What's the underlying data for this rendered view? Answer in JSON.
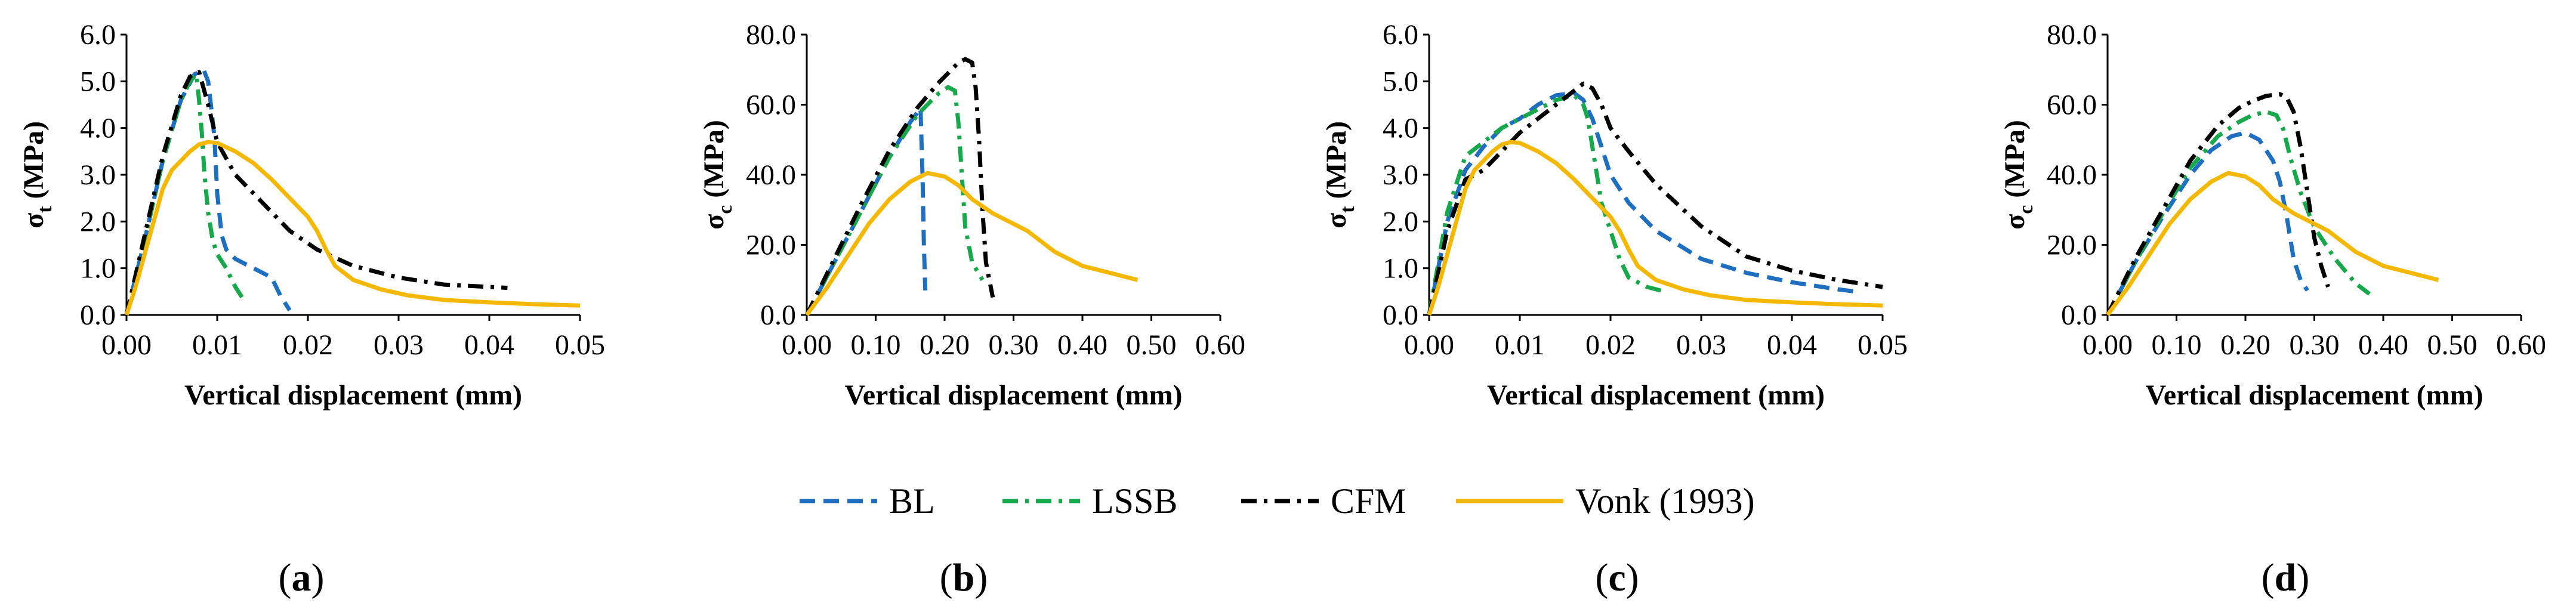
{
  "colors": {
    "BL": "#1F6FC0",
    "LSSB": "#16A84A",
    "CFM": "#000000",
    "Vonk": "#F5B800"
  },
  "legend": [
    {
      "key": "BL",
      "label": "BL"
    },
    {
      "key": "LSSB",
      "label": "LSSB"
    },
    {
      "key": "CFM",
      "label": "CFM"
    },
    {
      "key": "Vonk",
      "label": "Vonk (1993)"
    }
  ],
  "chart_data": [
    {
      "panel": "a",
      "type": "line",
      "xlabel": "Vertical displacement (mm)",
      "ylabel_main": "σ",
      "ylabel_sub": "t",
      "ylabel_unit": " (MPa)",
      "xlim": [
        0,
        0.05
      ],
      "ylim": [
        0,
        6
      ],
      "xticks": [
        "0.00",
        "0.01",
        "0.02",
        "0.03",
        "0.04",
        "0.05"
      ],
      "xtick_values": [
        0,
        0.01,
        0.02,
        0.03,
        0.04,
        0.05
      ],
      "yticks": [
        "0.0",
        "1.0",
        "2.0",
        "3.0",
        "4.0",
        "5.0",
        "6.0"
      ],
      "ytick_values": [
        0,
        1,
        2,
        3,
        4,
        5,
        6
      ],
      "series": [
        {
          "key": "BL",
          "x": [
            0,
            0.002,
            0.004,
            0.006,
            0.0075,
            0.0085,
            0.009,
            0.0093,
            0.0097,
            0.01,
            0.0105,
            0.011,
            0.012,
            0.014,
            0.016,
            0.017,
            0.018
          ],
          "y": [
            0,
            1.6,
            3.3,
            4.6,
            5.15,
            5.25,
            5.0,
            4.5,
            3.8,
            2.6,
            1.7,
            1.4,
            1.2,
            1.0,
            0.8,
            0.4,
            0.1
          ]
        },
        {
          "key": "LSSB",
          "x": [
            0,
            0.002,
            0.004,
            0.006,
            0.007,
            0.0077,
            0.008,
            0.0083,
            0.0086,
            0.009,
            0.0095,
            0.01,
            0.011,
            0.012,
            0.013
          ],
          "y": [
            0,
            1.6,
            3.3,
            4.6,
            5.0,
            5.15,
            4.6,
            3.9,
            3.0,
            2.2,
            1.6,
            1.3,
            1.0,
            0.6,
            0.3
          ]
        },
        {
          "key": "CFM",
          "x": [
            0,
            0.002,
            0.004,
            0.006,
            0.007,
            0.008,
            0.009,
            0.01,
            0.012,
            0.015,
            0.018,
            0.021,
            0.025,
            0.03,
            0.035,
            0.04,
            0.042
          ],
          "y": [
            0,
            1.7,
            3.4,
            4.7,
            5.1,
            5.2,
            4.5,
            3.7,
            3.0,
            2.4,
            1.8,
            1.4,
            1.05,
            0.8,
            0.65,
            0.6,
            0.58
          ]
        },
        {
          "key": "Vonk",
          "x": [
            0,
            0.001,
            0.002,
            0.003,
            0.004,
            0.005,
            0.006,
            0.007,
            0.008,
            0.009,
            0.01,
            0.012,
            0.014,
            0.016,
            0.018,
            0.02,
            0.021,
            0.022,
            0.023,
            0.025,
            0.028,
            0.031,
            0.035,
            0.04,
            0.045,
            0.05
          ],
          "y": [
            0,
            0.6,
            1.3,
            2.0,
            2.7,
            3.1,
            3.3,
            3.5,
            3.65,
            3.7,
            3.68,
            3.5,
            3.25,
            2.9,
            2.5,
            2.1,
            1.8,
            1.4,
            1.05,
            0.75,
            0.55,
            0.42,
            0.32,
            0.27,
            0.23,
            0.2
          ]
        }
      ]
    },
    {
      "panel": "b",
      "type": "line",
      "xlabel": "Vertical displacement (mm)",
      "ylabel_main": "σ",
      "ylabel_sub": "c",
      "ylabel_unit": " (MPa)",
      "xlim": [
        0,
        0.6
      ],
      "ylim": [
        0,
        80
      ],
      "xticks": [
        "0.00",
        "0.10",
        "0.20",
        "0.30",
        "0.40",
        "0.50",
        "0.60"
      ],
      "xtick_values": [
        0,
        0.1,
        0.2,
        0.3,
        0.4,
        0.5,
        0.6
      ],
      "yticks": [
        "0.0",
        "20.0",
        "40.0",
        "60.0",
        "80.0"
      ],
      "ytick_values": [
        0,
        20,
        40,
        60,
        80
      ],
      "series": [
        {
          "key": "BL",
          "x": [
            0,
            0.04,
            0.08,
            0.12,
            0.15,
            0.165,
            0.168,
            0.17,
            0.172
          ],
          "y": [
            0,
            15,
            30,
            45,
            55,
            59,
            40,
            20,
            7
          ]
        },
        {
          "key": "LSSB",
          "x": [
            0,
            0.04,
            0.08,
            0.12,
            0.16,
            0.19,
            0.205,
            0.215,
            0.22,
            0.225,
            0.23,
            0.24,
            0.255
          ],
          "y": [
            0,
            15,
            30,
            45,
            57,
            63,
            65,
            64,
            55,
            40,
            25,
            15,
            10
          ]
        },
        {
          "key": "CFM",
          "x": [
            0,
            0.04,
            0.08,
            0.12,
            0.16,
            0.19,
            0.21,
            0.22,
            0.23,
            0.24,
            0.245,
            0.25,
            0.255,
            0.26,
            0.27
          ],
          "y": [
            0,
            16,
            32,
            47,
            59,
            66,
            70,
            72,
            73,
            72,
            65,
            50,
            30,
            15,
            5
          ]
        },
        {
          "key": "Vonk",
          "x": [
            0,
            0.03,
            0.06,
            0.09,
            0.12,
            0.15,
            0.175,
            0.2,
            0.22,
            0.24,
            0.27,
            0.3,
            0.32,
            0.34,
            0.36,
            0.38,
            0.4,
            0.44,
            0.48
          ],
          "y": [
            0,
            8,
            17,
            26,
            33,
            38,
            40.5,
            39.5,
            37,
            33,
            29,
            26,
            24,
            21,
            18,
            16,
            14,
            12,
            10
          ]
        }
      ]
    },
    {
      "panel": "c",
      "type": "line",
      "xlabel": "Vertical displacement (mm)",
      "ylabel_main": "σ",
      "ylabel_sub": "t",
      "ylabel_unit": " (MPa)",
      "xlim": [
        0,
        0.05
      ],
      "ylim": [
        0,
        6
      ],
      "xticks": [
        "0.00",
        "0.01",
        "0.02",
        "0.03",
        "0.04",
        "0.05"
      ],
      "xtick_values": [
        0,
        0.01,
        0.02,
        0.03,
        0.04,
        0.05
      ],
      "yticks": [
        "0.0",
        "1.0",
        "2.0",
        "3.0",
        "4.0",
        "5.0",
        "6.0"
      ],
      "ytick_values": [
        0,
        1,
        2,
        3,
        4,
        5,
        6
      ],
      "series": [
        {
          "key": "BL",
          "x": [
            0,
            0.002,
            0.004,
            0.006,
            0.008,
            0.01,
            0.012,
            0.014,
            0.016,
            0.017,
            0.018,
            0.019,
            0.02,
            0.022,
            0.025,
            0.03,
            0.035,
            0.04,
            0.045,
            0.047
          ],
          "y": [
            0,
            2.0,
            3.1,
            3.6,
            4.0,
            4.2,
            4.5,
            4.7,
            4.75,
            4.6,
            4.2,
            3.6,
            3.0,
            2.4,
            1.8,
            1.2,
            0.9,
            0.7,
            0.55,
            0.5
          ]
        },
        {
          "key": "LSSB",
          "x": [
            0,
            0.002,
            0.004,
            0.006,
            0.008,
            0.01,
            0.012,
            0.014,
            0.016,
            0.017,
            0.0175,
            0.018,
            0.0185,
            0.019,
            0.02,
            0.021,
            0.022,
            0.024,
            0.026
          ],
          "y": [
            0,
            2.2,
            3.4,
            3.7,
            4.0,
            4.2,
            4.4,
            4.6,
            4.7,
            4.5,
            4.2,
            3.6,
            3.0,
            2.4,
            1.8,
            1.2,
            0.8,
            0.6,
            0.5
          ]
        },
        {
          "key": "CFM",
          "x": [
            0,
            0.002,
            0.004,
            0.006,
            0.008,
            0.01,
            0.012,
            0.014,
            0.016,
            0.017,
            0.018,
            0.019,
            0.02,
            0.022,
            0.025,
            0.03,
            0.035,
            0.04,
            0.045,
            0.05
          ],
          "y": [
            0,
            1.8,
            2.9,
            3.1,
            3.5,
            3.9,
            4.2,
            4.5,
            4.8,
            4.95,
            4.85,
            4.5,
            4.0,
            3.5,
            2.8,
            1.9,
            1.25,
            0.95,
            0.75,
            0.6
          ]
        },
        {
          "key": "Vonk",
          "x": [
            0,
            0.001,
            0.002,
            0.003,
            0.004,
            0.005,
            0.006,
            0.007,
            0.008,
            0.009,
            0.01,
            0.012,
            0.014,
            0.016,
            0.018,
            0.02,
            0.021,
            0.022,
            0.023,
            0.025,
            0.028,
            0.031,
            0.035,
            0.04,
            0.045,
            0.05
          ],
          "y": [
            0,
            0.6,
            1.3,
            2.0,
            2.7,
            3.1,
            3.3,
            3.5,
            3.65,
            3.7,
            3.68,
            3.5,
            3.25,
            2.9,
            2.5,
            2.1,
            1.8,
            1.4,
            1.05,
            0.75,
            0.55,
            0.42,
            0.32,
            0.27,
            0.23,
            0.2
          ]
        }
      ]
    },
    {
      "panel": "d",
      "type": "line",
      "xlabel": "Vertical displacement (mm)",
      "ylabel_main": "σ",
      "ylabel_sub": "c",
      "ylabel_unit": " (MPa)",
      "xlim": [
        0,
        0.6
      ],
      "ylim": [
        0,
        80
      ],
      "xticks": [
        "0.00",
        "0.10",
        "0.20",
        "0.30",
        "0.40",
        "0.50",
        "0.60"
      ],
      "xtick_values": [
        0,
        0.1,
        0.2,
        0.3,
        0.4,
        0.5,
        0.6
      ],
      "yticks": [
        "0.0",
        "20.0",
        "40.0",
        "60.0",
        "80.0"
      ],
      "ytick_values": [
        0,
        20,
        40,
        60,
        80
      ],
      "series": [
        {
          "key": "BL",
          "x": [
            0,
            0.04,
            0.08,
            0.12,
            0.15,
            0.18,
            0.2,
            0.22,
            0.24,
            0.25,
            0.26,
            0.27,
            0.28,
            0.29
          ],
          "y": [
            0,
            15,
            28,
            40,
            47,
            51,
            52,
            50,
            44,
            38,
            28,
            16,
            10,
            7
          ]
        },
        {
          "key": "LSSB",
          "x": [
            0,
            0.04,
            0.08,
            0.12,
            0.16,
            0.19,
            0.21,
            0.23,
            0.245,
            0.255,
            0.265,
            0.28,
            0.3,
            0.33,
            0.36,
            0.38
          ],
          "y": [
            0,
            15,
            29,
            42,
            51,
            55,
            57,
            58,
            57,
            53,
            45,
            35,
            25,
            16,
            9,
            6
          ]
        },
        {
          "key": "CFM",
          "x": [
            0,
            0.04,
            0.08,
            0.12,
            0.16,
            0.19,
            0.21,
            0.23,
            0.25,
            0.26,
            0.27,
            0.28,
            0.29,
            0.3,
            0.31,
            0.32
          ],
          "y": [
            0,
            16,
            30,
            44,
            54,
            59,
            61,
            62.5,
            63,
            62,
            58,
            48,
            35,
            22,
            14,
            8
          ]
        },
        {
          "key": "Vonk",
          "x": [
            0,
            0.03,
            0.06,
            0.09,
            0.12,
            0.15,
            0.175,
            0.2,
            0.22,
            0.24,
            0.27,
            0.3,
            0.32,
            0.34,
            0.36,
            0.38,
            0.4,
            0.44,
            0.48
          ],
          "y": [
            0,
            8,
            17,
            26,
            33,
            38,
            40.5,
            39.5,
            37,
            33,
            29,
            26,
            24,
            21,
            18,
            16,
            14,
            12,
            10
          ]
        }
      ]
    }
  ]
}
